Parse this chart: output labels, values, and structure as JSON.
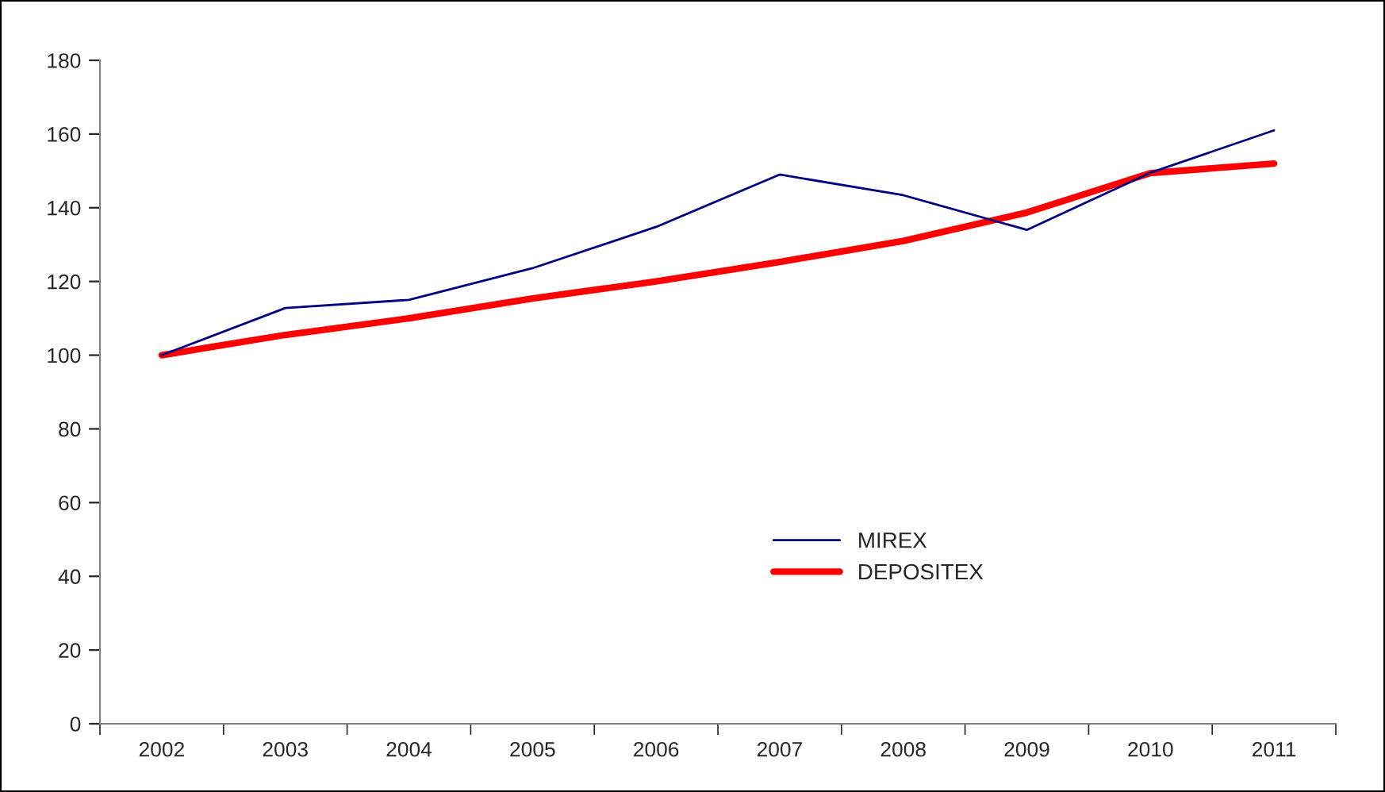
{
  "chart_data": {
    "type": "line",
    "categories": [
      "2002",
      "2003",
      "2004",
      "2005",
      "2006",
      "2007",
      "2008",
      "2009",
      "2010",
      "2011"
    ],
    "series": [
      {
        "name": "MIREX",
        "color": "#000080",
        "values": [
          100,
          112.8,
          115,
          123.6,
          134.8,
          149,
          143.4,
          134,
          149.5,
          161
        ]
      },
      {
        "name": "DEPOSITEX",
        "color": "#ff0000",
        "values": [
          100,
          105.5,
          110,
          115.4,
          120,
          125.3,
          131,
          138.7,
          149.4,
          152
        ]
      }
    ],
    "ylim": [
      0,
      180
    ],
    "yticks": [
      0,
      20,
      40,
      60,
      80,
      100,
      120,
      140,
      160,
      180
    ],
    "grid": false,
    "legend": "center",
    "marker": "none",
    "line_style": "solid"
  }
}
